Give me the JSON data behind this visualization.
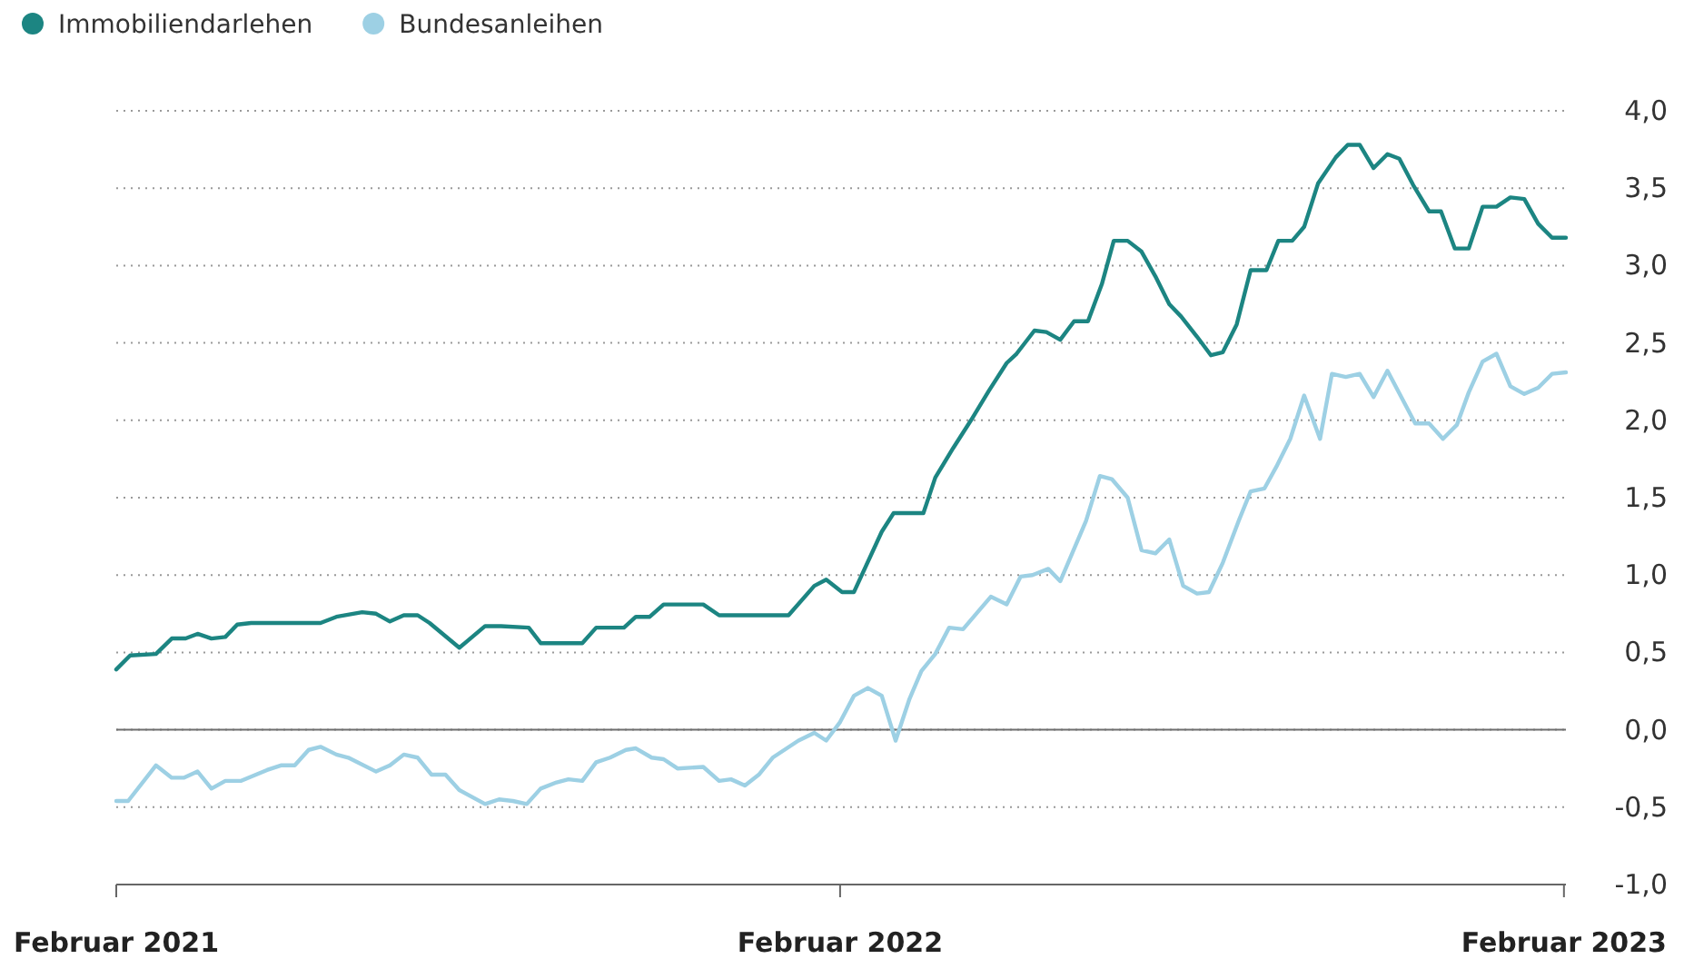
{
  "chart_data": {
    "type": "line",
    "legend": "top left",
    "grid": "y",
    "line_style": "solid",
    "xlim": [
      "2021-02-01",
      "2023-02-02"
    ],
    "xticks": [
      {
        "value": "2021-02-01",
        "label": "Februar 2021"
      },
      {
        "value": "2022-02-01",
        "label": "Februar 2022"
      },
      {
        "value": "2023-02-01",
        "label": "Februar 2023"
      }
    ],
    "ylim": [
      -1,
      4
    ],
    "yticks": [
      {
        "value": -1,
        "label": "-1,0"
      },
      {
        "value": -0.5,
        "label": "-0,5"
      },
      {
        "value": 0,
        "label": "0,0"
      },
      {
        "value": 0.5,
        "label": "0,5"
      },
      {
        "value": 1,
        "label": "1,0"
      },
      {
        "value": 1.5,
        "label": "1,5"
      },
      {
        "value": 2,
        "label": "2,0"
      },
      {
        "value": 2.5,
        "label": "2,5"
      },
      {
        "value": 3,
        "label": "3,0"
      },
      {
        "value": 3.5,
        "label": "3,5"
      },
      {
        "value": 4,
        "label": "4,0"
      }
    ],
    "ref_lines": [
      {
        "axis": "y",
        "value": 0,
        "color": "#6e6e6e"
      }
    ],
    "series": [
      {
        "name": "Immobiliendarlehen",
        "color": "#1c8582",
        "x": [
          "2021-02-01",
          "2021-02-08",
          "2021-02-21",
          "2021-03-01",
          "2021-03-08",
          "2021-03-14",
          "2021-03-21",
          "2021-03-28",
          "2021-04-03",
          "2021-04-10",
          "2021-05-15",
          "2021-05-23",
          "2021-06-05",
          "2021-06-12",
          "2021-06-19",
          "2021-06-26",
          "2021-07-03",
          "2021-07-09",
          "2021-07-24",
          "2021-08-06",
          "2021-08-14",
          "2021-08-28",
          "2021-09-03",
          "2021-09-24",
          "2021-10-01",
          "2021-10-15",
          "2021-10-21",
          "2021-10-28",
          "2021-11-04",
          "2021-11-24",
          "2021-12-02",
          "2022-01-06",
          "2022-01-19",
          "2022-01-25",
          "2022-02-02",
          "2022-02-08",
          "2022-02-22",
          "2022-02-28",
          "2022-03-15",
          "2022-03-21",
          "2022-03-30",
          "2022-04-08",
          "2022-04-17",
          "2022-04-26",
          "2022-05-01",
          "2022-05-10",
          "2022-05-16",
          "2022-05-23",
          "2022-05-30",
          "2022-06-06",
          "2022-06-13",
          "2022-06-19",
          "2022-06-26",
          "2022-07-03",
          "2022-07-10",
          "2022-07-17",
          "2022-07-23",
          "2022-07-31",
          "2022-08-07",
          "2022-08-13",
          "2022-08-20",
          "2022-08-27",
          "2022-09-04",
          "2022-09-10",
          "2022-09-17",
          "2022-09-23",
          "2022-09-30",
          "2022-10-09",
          "2022-10-15",
          "2022-10-21",
          "2022-10-28",
          "2022-11-04",
          "2022-11-10",
          "2022-11-17",
          "2022-11-25",
          "2022-12-01",
          "2022-12-08",
          "2022-12-15",
          "2022-12-22",
          "2022-12-29",
          "2023-01-05",
          "2023-01-12",
          "2023-01-19",
          "2023-01-26",
          "2023-02-02"
        ],
        "values": [
          0.39,
          0.48,
          0.49,
          0.59,
          0.59,
          0.62,
          0.59,
          0.6,
          0.68,
          0.69,
          0.69,
          0.73,
          0.76,
          0.75,
          0.7,
          0.74,
          0.74,
          0.69,
          0.53,
          0.67,
          0.67,
          0.66,
          0.56,
          0.56,
          0.66,
          0.66,
          0.73,
          0.73,
          0.81,
          0.81,
          0.74,
          0.74,
          0.93,
          0.97,
          0.89,
          0.89,
          1.28,
          1.4,
          1.4,
          1.63,
          1.82,
          2.0,
          2.19,
          2.37,
          2.43,
          2.58,
          2.57,
          2.52,
          2.64,
          2.64,
          2.88,
          3.16,
          3.16,
          3.09,
          2.93,
          2.75,
          2.67,
          2.54,
          2.42,
          2.44,
          2.62,
          2.97,
          2.97,
          3.16,
          3.16,
          3.25,
          3.53,
          3.7,
          3.78,
          3.78,
          3.63,
          3.72,
          3.69,
          3.52,
          3.35,
          3.35,
          3.11,
          3.11,
          3.38,
          3.38,
          3.44,
          3.43,
          3.27,
          3.18,
          3.18
        ]
      },
      {
        "name": "Bundesanleihen",
        "color": "#9dd0e4",
        "x": [
          "2021-02-01",
          "2021-02-07",
          "2021-02-21",
          "2021-03-01",
          "2021-03-07",
          "2021-03-14",
          "2021-03-21",
          "2021-03-28",
          "2021-04-05",
          "2021-04-18",
          "2021-04-25",
          "2021-05-02",
          "2021-05-09",
          "2021-05-15",
          "2021-05-23",
          "2021-05-29",
          "2021-06-12",
          "2021-06-19",
          "2021-06-26",
          "2021-07-03",
          "2021-07-10",
          "2021-07-17",
          "2021-07-24",
          "2021-08-06",
          "2021-08-13",
          "2021-08-20",
          "2021-08-27",
          "2021-09-03",
          "2021-09-11",
          "2021-09-17",
          "2021-09-24",
          "2021-10-01",
          "2021-10-08",
          "2021-10-16",
          "2021-10-21",
          "2021-10-29",
          "2021-11-04",
          "2021-11-11",
          "2021-11-24",
          "2021-12-02",
          "2021-12-08",
          "2021-12-15",
          "2021-12-22",
          "2021-12-29",
          "2022-01-11",
          "2022-01-19",
          "2022-01-25",
          "2022-02-01",
          "2022-02-08",
          "2022-02-15",
          "2022-02-22",
          "2022-03-01",
          "2022-03-08",
          "2022-03-14",
          "2022-03-21",
          "2022-03-28",
          "2022-04-04",
          "2022-04-12",
          "2022-04-18",
          "2022-04-26",
          "2022-05-03",
          "2022-05-09",
          "2022-05-17",
          "2022-05-23",
          "2022-06-05",
          "2022-06-12",
          "2022-06-18",
          "2022-06-26",
          "2022-07-03",
          "2022-07-10",
          "2022-07-17",
          "2022-07-24",
          "2022-07-31",
          "2022-08-06",
          "2022-08-13",
          "2022-08-21",
          "2022-08-27",
          "2022-09-03",
          "2022-09-09",
          "2022-09-16",
          "2022-09-23",
          "2022-10-01",
          "2022-10-07",
          "2022-10-14",
          "2022-10-21",
          "2022-10-28",
          "2022-11-04",
          "2022-11-11",
          "2022-11-18",
          "2022-11-25",
          "2022-12-02",
          "2022-12-09",
          "2022-12-15",
          "2022-12-22",
          "2022-12-29",
          "2023-01-05",
          "2023-01-12",
          "2023-01-19",
          "2023-01-26",
          "2023-02-02"
        ],
        "values": [
          -0.46,
          -0.46,
          -0.23,
          -0.31,
          -0.31,
          -0.27,
          -0.38,
          -0.33,
          -0.33,
          -0.26,
          -0.23,
          -0.23,
          -0.13,
          -0.11,
          -0.16,
          -0.18,
          -0.27,
          -0.23,
          -0.16,
          -0.18,
          -0.29,
          -0.29,
          -0.39,
          -0.48,
          -0.45,
          -0.46,
          -0.48,
          -0.38,
          -0.34,
          -0.32,
          -0.33,
          -0.21,
          -0.18,
          -0.13,
          -0.12,
          -0.18,
          -0.19,
          -0.25,
          -0.24,
          -0.33,
          -0.32,
          -0.36,
          -0.29,
          -0.18,
          -0.07,
          -0.02,
          -0.07,
          0.05,
          0.22,
          0.27,
          0.22,
          -0.07,
          0.2,
          0.38,
          0.49,
          0.66,
          0.65,
          0.77,
          0.86,
          0.81,
          0.99,
          1.0,
          1.04,
          0.96,
          1.35,
          1.64,
          1.62,
          1.5,
          1.16,
          1.14,
          1.23,
          0.93,
          0.88,
          0.89,
          1.08,
          1.35,
          1.54,
          1.56,
          1.7,
          1.88,
          2.16,
          1.88,
          2.3,
          2.28,
          2.3,
          2.15,
          2.32,
          2.15,
          1.98,
          1.98,
          1.88,
          1.97,
          2.18,
          2.38,
          2.43,
          2.22,
          2.17,
          2.21,
          2.3,
          2.31
        ]
      }
    ]
  }
}
